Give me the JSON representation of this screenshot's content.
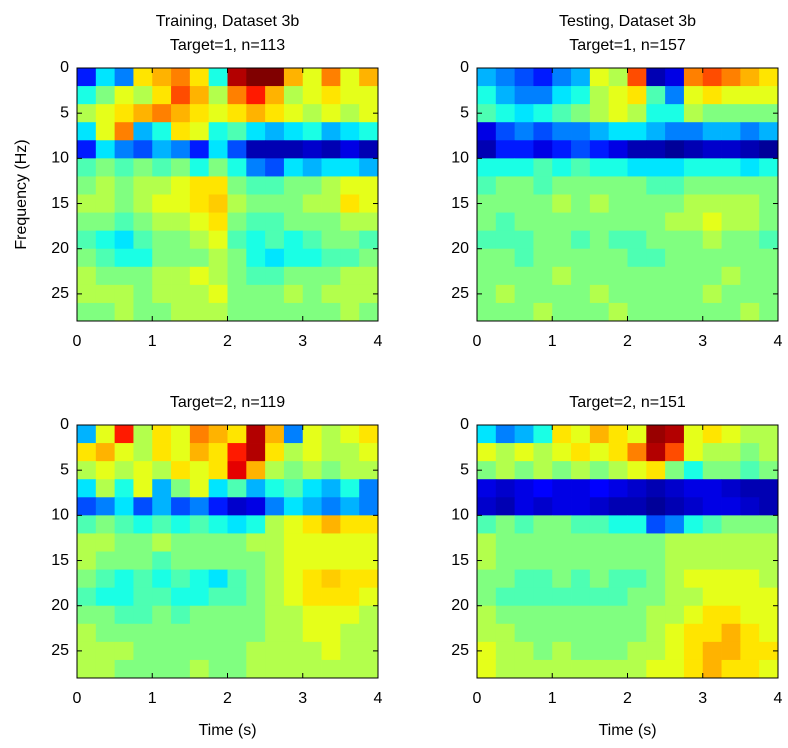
{
  "chart_data": [
    {
      "type": "heatmap",
      "title": [
        "Training, Dataset 3b",
        "Target=1, n=113"
      ],
      "ylabel": "Frequency (Hz)",
      "x": [
        0.125,
        0.375,
        0.625,
        0.875,
        1.125,
        1.375,
        1.625,
        1.875,
        2.125,
        2.375,
        2.625,
        2.875,
        3.125,
        3.375,
        3.625,
        3.875
      ],
      "y": [
        1,
        3,
        5,
        7,
        9,
        11,
        13,
        15,
        17,
        19,
        21,
        23,
        25,
        27
      ],
      "z": [
        [
          -0.7,
          -0.3,
          -0.5,
          0.3,
          0.4,
          0.5,
          0.3,
          -0.2,
          0.9,
          1.0,
          1.0,
          0.4,
          0.2,
          0.5,
          0.2,
          0.4
        ],
        [
          -0.2,
          0,
          0.2,
          0.1,
          0.3,
          0.6,
          0.4,
          0.1,
          0.5,
          0.7,
          0.4,
          0.1,
          0.2,
          0.3,
          0.2,
          0.2
        ],
        [
          0.1,
          0.2,
          0.3,
          0.4,
          0.5,
          0.4,
          0.3,
          0.2,
          0.3,
          0.4,
          0.3,
          0.2,
          0.1,
          0.2,
          0.1,
          0.2
        ],
        [
          -0.3,
          0.2,
          0.5,
          -0.4,
          -0.2,
          0.3,
          0.2,
          -0.2,
          -0.1,
          -0.3,
          -0.4,
          -0.3,
          -0.2,
          -0.4,
          -0.3,
          -0.2
        ],
        [
          -0.7,
          -0.3,
          -0.5,
          -0.6,
          -0.4,
          -0.5,
          -0.7,
          -0.3,
          -0.6,
          -0.9,
          -0.9,
          -0.9,
          -0.85,
          -0.9,
          -0.8,
          -0.9
        ],
        [
          -0.1,
          0,
          -0.1,
          0,
          -0.1,
          0,
          -0.2,
          0,
          -0.2,
          -0.5,
          -0.6,
          -0.3,
          -0.4,
          -0.3,
          -0.3,
          -0.4
        ],
        [
          0,
          0.1,
          0,
          0.1,
          0.1,
          0.2,
          0.3,
          0.3,
          0,
          -0.1,
          -0.1,
          0,
          0,
          0.1,
          0.2,
          0.2
        ],
        [
          0.1,
          0.1,
          0,
          0.1,
          0.2,
          0.2,
          0.3,
          0.35,
          0.1,
          0,
          0,
          0,
          0.1,
          0.1,
          0.3,
          0.2
        ],
        [
          0,
          0,
          -0.1,
          0,
          0.1,
          0.1,
          0.2,
          0.3,
          0,
          -0.1,
          -0.1,
          0,
          0,
          0,
          0.1,
          0.1
        ],
        [
          -0.1,
          -0.2,
          -0.3,
          -0.1,
          0,
          0,
          0.1,
          0.2,
          -0.1,
          -0.2,
          -0.1,
          -0.2,
          -0.1,
          0,
          0,
          -0.1
        ],
        [
          0,
          -0.1,
          -0.2,
          -0.2,
          0,
          0,
          0,
          0.1,
          0,
          -0.2,
          -0.3,
          -0.2,
          -0.2,
          -0.1,
          -0.1,
          0
        ],
        [
          0.1,
          0,
          0,
          0,
          0.1,
          0.1,
          0.2,
          0.1,
          0,
          -0.1,
          -0.1,
          0,
          0,
          0,
          0.1,
          0.1
        ],
        [
          0.1,
          0.1,
          0.1,
          0,
          0.1,
          0.1,
          0.1,
          0.2,
          0,
          0,
          0,
          0.1,
          0,
          0.1,
          0.1,
          0.1
        ],
        [
          0,
          0,
          0.1,
          0,
          0,
          0.1,
          0.1,
          0.1,
          0,
          0,
          0,
          0,
          0,
          0,
          0.1,
          0
        ]
      ],
      "xlim": [
        0,
        4
      ],
      "ylim": [
        0,
        28
      ],
      "ydir": "reverse",
      "xticks": [
        0,
        1,
        2,
        3,
        4
      ],
      "yticks": [
        0,
        5,
        10,
        15,
        20,
        25
      ],
      "colormap": "jet",
      "clim": [
        -1,
        1
      ]
    },
    {
      "type": "heatmap",
      "title": [
        "Testing, Dataset 3b",
        "Target=1, n=157"
      ],
      "x": [
        0.125,
        0.375,
        0.625,
        0.875,
        1.125,
        1.375,
        1.625,
        1.875,
        2.125,
        2.375,
        2.625,
        2.875,
        3.125,
        3.375,
        3.625,
        3.875
      ],
      "y": [
        1,
        3,
        5,
        7,
        9,
        11,
        13,
        15,
        17,
        19,
        21,
        23,
        25,
        27
      ],
      "z": [
        [
          -0.4,
          -0.5,
          -0.6,
          -0.7,
          -0.5,
          -0.4,
          0.2,
          0.1,
          0.6,
          -0.9,
          -0.8,
          0.5,
          0.6,
          0.5,
          0.4,
          0.3
        ],
        [
          -0.2,
          -0.4,
          -0.5,
          -0.5,
          -0.3,
          -0.2,
          0.1,
          0.2,
          0.3,
          -0.1,
          -0.5,
          0.2,
          0.3,
          0.2,
          0.2,
          0.2
        ],
        [
          -0.1,
          -0.2,
          -0.3,
          -0.2,
          -0.1,
          0,
          0.1,
          0.2,
          0.1,
          -0.2,
          -0.2,
          0.1,
          0,
          0,
          0,
          0
        ],
        [
          -0.8,
          -0.6,
          -0.5,
          -0.6,
          -0.5,
          -0.5,
          -0.4,
          -0.3,
          -0.3,
          -0.4,
          -0.5,
          -0.5,
          -0.4,
          -0.4,
          -0.5,
          -0.4
        ],
        [
          -0.9,
          -0.7,
          -0.7,
          -0.8,
          -0.7,
          -0.6,
          -0.7,
          -0.8,
          -0.9,
          -0.9,
          -0.95,
          -0.9,
          -0.85,
          -0.85,
          -0.9,
          -0.95
        ],
        [
          -0.2,
          -0.2,
          -0.2,
          -0.1,
          -0.2,
          -0.1,
          -0.2,
          -0.2,
          -0.3,
          -0.3,
          -0.3,
          -0.2,
          -0.2,
          -0.2,
          -0.3,
          -0.2
        ],
        [
          -0.1,
          0,
          0,
          -0.1,
          0,
          0,
          0,
          0,
          0,
          -0.1,
          -0.1,
          0,
          0,
          0,
          0,
          0
        ],
        [
          0,
          0,
          0,
          0,
          0.1,
          0,
          0.1,
          0,
          0,
          0,
          0,
          0.1,
          0.1,
          0.1,
          0.1,
          0
        ],
        [
          0,
          -0.1,
          0,
          0,
          0,
          0,
          0,
          0,
          0,
          0,
          0.1,
          0.1,
          0.2,
          0.1,
          0.1,
          0
        ],
        [
          -0.1,
          -0.1,
          -0.1,
          0,
          0,
          -0.1,
          0,
          -0.1,
          -0.1,
          0,
          0,
          0,
          0.1,
          0,
          0,
          -0.1
        ],
        [
          0,
          0,
          -0.1,
          0,
          0,
          0,
          0,
          0,
          -0.1,
          -0.1,
          0,
          0,
          0,
          0,
          0,
          0
        ],
        [
          0,
          0,
          0,
          0,
          0.1,
          0,
          0,
          0,
          0,
          0,
          0,
          0,
          0,
          0.1,
          0,
          0
        ],
        [
          0,
          0.1,
          0,
          0,
          0,
          0,
          0.1,
          0,
          0,
          0,
          0,
          0,
          0.1,
          0,
          0,
          0
        ],
        [
          0,
          0,
          0,
          0.1,
          0,
          0,
          0,
          0.1,
          0,
          0,
          0,
          0,
          0,
          0,
          0.1,
          0
        ]
      ],
      "xlim": [
        0,
        4
      ],
      "ylim": [
        0,
        28
      ],
      "ydir": "reverse",
      "xticks": [
        0,
        1,
        2,
        3,
        4
      ],
      "yticks": [
        0,
        5,
        10,
        15,
        20,
        25
      ],
      "colormap": "jet",
      "clim": [
        -1,
        1
      ]
    },
    {
      "type": "heatmap",
      "title": [
        "Target=2, n=119"
      ],
      "xlabel": "Time (s)",
      "x": [
        0.125,
        0.375,
        0.625,
        0.875,
        1.125,
        1.375,
        1.625,
        1.875,
        2.125,
        2.375,
        2.625,
        2.875,
        3.125,
        3.375,
        3.625,
        3.875
      ],
      "y": [
        1,
        3,
        5,
        7,
        9,
        11,
        13,
        15,
        17,
        19,
        21,
        23,
        25,
        27
      ],
      "z": [
        [
          -0.4,
          0.2,
          0.7,
          0.1,
          0.3,
          0.2,
          0.5,
          0.4,
          0.3,
          0.9,
          0.4,
          -0.5,
          0.2,
          0.1,
          0.2,
          0.3
        ],
        [
          0.3,
          0.4,
          0.2,
          0.1,
          0.3,
          0.2,
          0.4,
          0.3,
          0.7,
          0.9,
          0.3,
          0.1,
          0.2,
          0.1,
          0.1,
          0.2
        ],
        [
          0.1,
          0.2,
          0.1,
          0.2,
          0.1,
          0.3,
          0.2,
          0.3,
          0.8,
          0.4,
          0.1,
          0,
          0.1,
          0,
          0.1,
          0.1
        ],
        [
          -0.3,
          0.1,
          -0.2,
          0.2,
          -0.4,
          0,
          0.2,
          -0.3,
          -0.1,
          -0.4,
          -0.2,
          -0.1,
          -0.3,
          -0.4,
          -0.2,
          -0.5
        ],
        [
          -0.6,
          -0.5,
          -0.3,
          -0.6,
          -0.4,
          -0.6,
          -0.5,
          -0.7,
          -0.85,
          -0.8,
          -0.5,
          -0.3,
          -0.4,
          -0.5,
          -0.4,
          -0.5
        ],
        [
          -0.1,
          0,
          -0.1,
          -0.2,
          -0.1,
          -0.2,
          -0.1,
          -0.2,
          -0.3,
          -0.2,
          0.1,
          0.2,
          0.3,
          0.4,
          0.3,
          0.3
        ],
        [
          0.1,
          0.1,
          0,
          0,
          0.1,
          0,
          0,
          0,
          0,
          0.1,
          0.1,
          0.2,
          0.2,
          0.2,
          0.2,
          0.2
        ],
        [
          0.1,
          0,
          0,
          0,
          -0.1,
          0,
          0,
          0,
          0,
          0,
          0.1,
          0.2,
          0.2,
          0.2,
          0.2,
          0.2
        ],
        [
          0,
          -0.1,
          -0.2,
          -0.1,
          -0.2,
          -0.1,
          -0.2,
          -0.3,
          -0.1,
          0,
          0.1,
          0.2,
          0.3,
          0.35,
          0.3,
          0.3
        ],
        [
          -0.1,
          -0.2,
          -0.2,
          -0.1,
          -0.1,
          -0.2,
          -0.2,
          -0.1,
          -0.1,
          0,
          0.1,
          0.2,
          0.3,
          0.3,
          0.3,
          0.2
        ],
        [
          0,
          0,
          -0.1,
          -0.1,
          0,
          -0.1,
          0,
          0,
          0,
          0,
          0.1,
          0.1,
          0.2,
          0.2,
          0.2,
          0.1
        ],
        [
          0.1,
          0,
          0,
          0,
          0,
          0,
          0,
          0,
          0,
          0,
          0.1,
          0.1,
          0.2,
          0.2,
          0.1,
          0.1
        ],
        [
          0.1,
          0.1,
          0.1,
          0,
          0,
          0,
          0,
          0,
          0,
          0.1,
          0.1,
          0.1,
          0.1,
          0.2,
          0.1,
          0.1
        ],
        [
          0.1,
          0.1,
          0,
          0,
          0,
          0,
          0.1,
          0,
          0,
          0.1,
          0.1,
          0.1,
          0.1,
          0.1,
          0.1,
          0.1
        ]
      ],
      "xlim": [
        0,
        4
      ],
      "ylim": [
        0,
        28
      ],
      "ydir": "reverse",
      "xticks": [
        0,
        1,
        2,
        3,
        4
      ],
      "yticks": [
        0,
        5,
        10,
        15,
        20,
        25
      ],
      "colormap": "jet",
      "clim": [
        -1,
        1
      ]
    },
    {
      "type": "heatmap",
      "title": [
        "Target=2, n=151"
      ],
      "xlabel": "Time (s)",
      "x": [
        0.125,
        0.375,
        0.625,
        0.875,
        1.125,
        1.375,
        1.625,
        1.875,
        2.125,
        2.375,
        2.625,
        2.875,
        3.125,
        3.375,
        3.625,
        3.875
      ],
      "y": [
        1,
        3,
        5,
        7,
        9,
        11,
        13,
        15,
        17,
        19,
        21,
        23,
        25,
        27
      ],
      "z": [
        [
          -0.3,
          -0.5,
          -0.4,
          -0.2,
          0.3,
          0.2,
          0.4,
          0.3,
          0.2,
          0.95,
          0.9,
          0.2,
          0.3,
          0.2,
          0.1,
          0.1
        ],
        [
          0.2,
          0.1,
          0.2,
          0.1,
          0.2,
          0.3,
          0.2,
          0.3,
          0.5,
          0.9,
          0.6,
          0.2,
          0.1,
          0.1,
          0,
          0.1
        ],
        [
          0,
          0.1,
          0,
          0.1,
          0,
          0.1,
          0,
          0.1,
          0.2,
          0.3,
          0,
          -0.2,
          0,
          0,
          -0.1,
          0
        ],
        [
          -0.8,
          -0.85,
          -0.8,
          -0.75,
          -0.8,
          -0.8,
          -0.75,
          -0.8,
          -0.85,
          -0.9,
          -0.85,
          -0.8,
          -0.8,
          -0.85,
          -0.9,
          -0.9
        ],
        [
          -0.85,
          -0.9,
          -0.8,
          -0.85,
          -0.8,
          -0.8,
          -0.85,
          -0.9,
          -0.9,
          -0.95,
          -0.9,
          -0.85,
          -0.8,
          -0.8,
          -0.85,
          -0.9
        ],
        [
          -0.1,
          0,
          -0.1,
          0,
          0,
          -0.1,
          -0.1,
          -0.2,
          -0.2,
          -0.6,
          -0.5,
          -0.2,
          -0.1,
          0,
          0,
          0
        ],
        [
          0.1,
          0,
          0,
          0,
          0,
          0,
          0,
          0,
          0,
          0,
          0.1,
          0.1,
          0.1,
          0.1,
          0.1,
          0.1
        ],
        [
          0.1,
          0,
          0,
          0,
          0,
          0,
          0,
          0,
          0,
          0,
          0.1,
          0.1,
          0.1,
          0.1,
          0.1,
          0.1
        ],
        [
          0,
          0,
          -0.1,
          -0.1,
          0,
          -0.1,
          0,
          -0.1,
          -0.1,
          0,
          0.1,
          0.2,
          0.2,
          0.2,
          0.2,
          0.1
        ],
        [
          0,
          -0.1,
          -0.1,
          -0.1,
          -0.1,
          -0.1,
          -0.1,
          -0.1,
          0,
          0,
          0.1,
          0.1,
          0.2,
          0.2,
          0.2,
          0.2
        ],
        [
          0.1,
          0,
          0,
          0,
          0,
          0,
          0,
          0,
          0,
          0.1,
          0.1,
          0.2,
          0.3,
          0.3,
          0.2,
          0.2
        ],
        [
          0.1,
          0.1,
          0,
          0,
          0,
          0,
          0,
          0,
          0,
          0.1,
          0.2,
          0.3,
          0.3,
          0.4,
          0.3,
          0.2
        ],
        [
          0.2,
          0.1,
          0.1,
          0,
          0.1,
          0,
          0,
          0,
          0.1,
          0.1,
          0.2,
          0.3,
          0.4,
          0.4,
          0.3,
          0.3
        ],
        [
          0.2,
          0.1,
          0.1,
          0.1,
          0.1,
          0.1,
          0.1,
          0.1,
          0.1,
          0.2,
          0.2,
          0.3,
          0.4,
          0.3,
          0.3,
          0.2
        ]
      ],
      "xlim": [
        0,
        4
      ],
      "ylim": [
        0,
        28
      ],
      "ydir": "reverse",
      "xticks": [
        0,
        1,
        2,
        3,
        4
      ],
      "yticks": [
        0,
        5,
        10,
        15,
        20,
        25
      ],
      "colormap": "jet",
      "clim": [
        -1,
        1
      ]
    }
  ]
}
